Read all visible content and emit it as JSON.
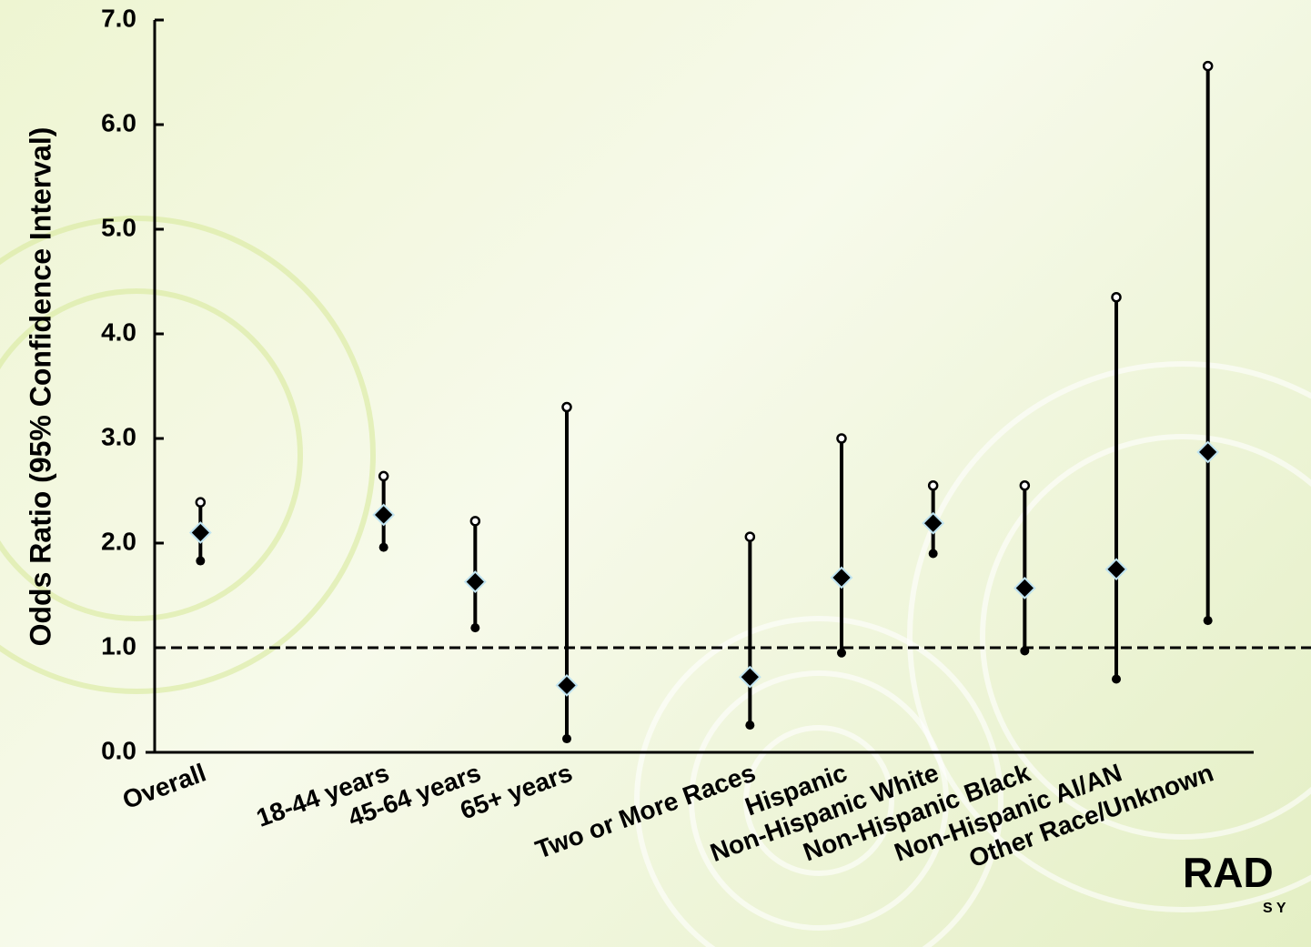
{
  "chart_data": {
    "type": "errorbar",
    "y_label": "Odds Ratio (95% Confidence Interval)",
    "categories": [
      "Overall",
      null,
      "18-44 years",
      "45-64 years",
      "65+ years",
      null,
      "Two or More Races",
      "Hispanic",
      "Non-Hispanic White",
      "Non-Hispanic Black",
      "Non-Hispanic AI/AN",
      "Other Race/Unknown"
    ],
    "values": [
      2.1,
      null,
      2.27,
      1.63,
      0.64,
      null,
      0.72,
      1.67,
      2.19,
      1.57,
      1.75,
      2.87
    ],
    "lower": [
      1.83,
      null,
      1.96,
      1.19,
      0.13,
      null,
      0.26,
      0.95,
      1.9,
      0.97,
      0.7,
      1.26
    ],
    "upper": [
      2.39,
      null,
      2.64,
      2.21,
      3.3,
      null,
      2.06,
      3.0,
      2.55,
      2.55,
      4.35,
      6.56
    ],
    "color": "#000000",
    "ylim": [
      0,
      7
    ],
    "yticks": [
      {
        "value": 0,
        "label": "0.0"
      },
      {
        "value": 1,
        "label": "1.0"
      },
      {
        "value": 2,
        "label": "2.0"
      },
      {
        "value": 3,
        "label": "3.0"
      },
      {
        "value": 4,
        "label": "4.0"
      },
      {
        "value": 5,
        "label": "5.0"
      },
      {
        "value": 6,
        "label": "6.0"
      },
      {
        "value": 7,
        "label": "7.0"
      }
    ],
    "reference_line": 1,
    "logo_text": "RAD",
    "logo_subtext": "S Y"
  }
}
